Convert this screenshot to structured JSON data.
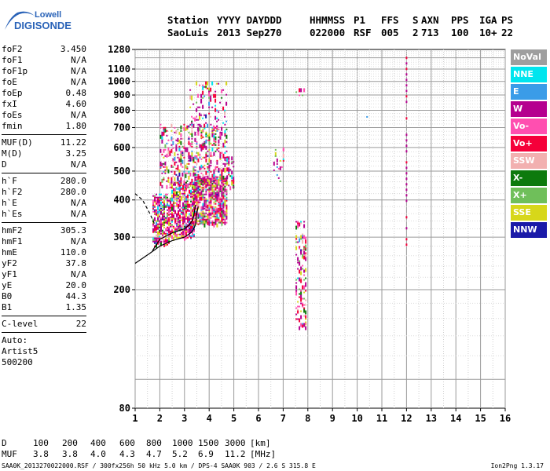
{
  "logo": {
    "line1": "Lowell",
    "line2": "DIGISONDE"
  },
  "header": {
    "labels": [
      "Station",
      "YYYY DAY",
      "DDD",
      "HHMMSS",
      "P1",
      "FFS",
      "S",
      "AXN",
      "PPS",
      "IGA",
      "PS"
    ],
    "values": [
      "SaoLuis",
      "2013 Sep27",
      "270",
      "022000",
      "RSF",
      "005",
      "2",
      "713",
      "100",
      "10+",
      "22"
    ]
  },
  "params_group1": [
    {
      "name": "foF2",
      "value": "3.450"
    },
    {
      "name": "foF1",
      "value": "N/A"
    },
    {
      "name": "foF1p",
      "value": "N/A"
    },
    {
      "name": "foE",
      "value": "N/A"
    },
    {
      "name": "foEp",
      "value": "0.48"
    },
    {
      "name": "fxI",
      "value": "4.60"
    },
    {
      "name": "foEs",
      "value": "N/A"
    },
    {
      "name": "fmin",
      "value": "1.80"
    }
  ],
  "params_group2": [
    {
      "name": "MUF(D)",
      "value": "11.22"
    },
    {
      "name": "M(D)",
      "value": "3.25"
    },
    {
      "name": "D",
      "value": "N/A"
    }
  ],
  "params_group3": [
    {
      "name": "h`F",
      "value": "280.0"
    },
    {
      "name": "h`F2",
      "value": "280.0"
    },
    {
      "name": "h`E",
      "value": "N/A"
    },
    {
      "name": "h`Es",
      "value": "N/A"
    }
  ],
  "params_group4": [
    {
      "name": "hmF2",
      "value": "305.3"
    },
    {
      "name": "hmF1",
      "value": "N/A"
    },
    {
      "name": "hmE",
      "value": "110.0"
    },
    {
      "name": "yF2",
      "value": "37.8"
    },
    {
      "name": "yF1",
      "value": "N/A"
    },
    {
      "name": "yE",
      "value": "20.0"
    },
    {
      "name": "B0",
      "value": "44.3"
    },
    {
      "name": "B1",
      "value": "1.35"
    }
  ],
  "clevel": {
    "name": "C-level",
    "value": "22"
  },
  "autoscale": {
    "line1": "Auto:",
    "line2": "Artist5",
    "line3": "500200"
  },
  "legend": [
    {
      "label": "NoVal",
      "color": "#9e9e9e"
    },
    {
      "label": "NNE",
      "color": "#00e5ee"
    },
    {
      "label": "E",
      "color": "#3a9ce8"
    },
    {
      "label": "W",
      "color": "#b5008f"
    },
    {
      "label": "Vo-",
      "color": "#ff4fb0"
    },
    {
      "label": "Vo+",
      "color": "#f5003a"
    },
    {
      "label": "SSW",
      "color": "#f2b0b0"
    },
    {
      "label": "X-",
      "color": "#0d7a0d"
    },
    {
      "label": "X+",
      "color": "#6fbf5a"
    },
    {
      "label": "SSE",
      "color": "#d7d71a"
    },
    {
      "label": "NNW",
      "color": "#1a1aa8"
    }
  ],
  "muf_table": {
    "d_label": "D",
    "d_values": [
      "100",
      "200",
      "400",
      "600",
      "800",
      "1000",
      "1500",
      "3000"
    ],
    "d_unit": "[km]",
    "muf_label": "MUF",
    "muf_values": [
      "3.8",
      "3.8",
      "4.0",
      "4.3",
      "4.7",
      "5.2",
      "6.9",
      "11.2"
    ],
    "muf_unit": "[MHz]"
  },
  "footer": {
    "left": "SAA0K_2013270022000.RSF / 300fx256h 50 kHz 5.0 km / DPS-4 SAA0K 903 / 2.6 S 315.8 E",
    "right": "Ion2Png 1.3.17"
  },
  "chart_data": {
    "type": "scatter",
    "xlim": [
      1,
      16
    ],
    "ylim": [
      80,
      1280
    ],
    "x_ticks": [
      1,
      2,
      3,
      4,
      5,
      6,
      7,
      8,
      9,
      10,
      11,
      12,
      13,
      14,
      15,
      16
    ],
    "y_ticks": [
      80,
      200,
      300,
      400,
      500,
      600,
      700,
      800,
      900,
      1000,
      1100,
      1280
    ],
    "y_scale": "log",
    "grid": true,
    "legend_position": "right",
    "echo_regions": [
      {
        "x": [
          1.7,
          2.4
        ],
        "y": [
          280,
          420
        ],
        "density": 0.55
      },
      {
        "x": [
          2.4,
          3.4
        ],
        "y": [
          300,
          460
        ],
        "density": 0.6
      },
      {
        "x": [
          3.4,
          4.7
        ],
        "y": [
          330,
          480
        ],
        "density": 0.65
      },
      {
        "x": [
          2.0,
          4.7
        ],
        "y": [
          440,
          720
        ],
        "density": 0.25
      },
      {
        "x": [
          3.2,
          4.7
        ],
        "y": [
          700,
          1000
        ],
        "density": 0.15
      },
      {
        "x": [
          4.7,
          5.0
        ],
        "y": [
          440,
          560
        ],
        "density": 0.3
      },
      {
        "x": [
          6.6,
          7.0
        ],
        "y": [
          460,
          600
        ],
        "density": 0.15
      },
      {
        "x": [
          7.5,
          7.9
        ],
        "y": [
          150,
          340
        ],
        "density": 0.2
      },
      {
        "x": [
          7.5,
          7.9
        ],
        "y": [
          900,
          960
        ],
        "density": 0.2
      }
    ],
    "spread_lines": [
      {
        "x": 12.0,
        "y": [
          260,
          1210
        ]
      }
    ],
    "isolated_points": [
      {
        "x": 10.4,
        "y": 760
      }
    ],
    "trace_curves": [
      {
        "name": "o-trace",
        "x": [
          1.0,
          1.6,
          2.0,
          2.5,
          3.0,
          3.3,
          3.45,
          3.5,
          3.55
        ],
        "y": [
          245,
          265,
          280,
          292,
          300,
          312,
          330,
          360,
          380
        ]
      },
      {
        "name": "x-trace",
        "x": [
          1.7,
          2.0,
          2.5,
          3.0,
          3.2,
          3.35,
          3.4,
          3.45
        ],
        "y": [
          270,
          295,
          310,
          320,
          330,
          345,
          365,
          385
        ]
      },
      {
        "name": "dashed",
        "x": [
          1.0,
          1.3,
          1.6,
          1.8
        ],
        "y": [
          420,
          400,
          360,
          330
        ]
      }
    ]
  }
}
